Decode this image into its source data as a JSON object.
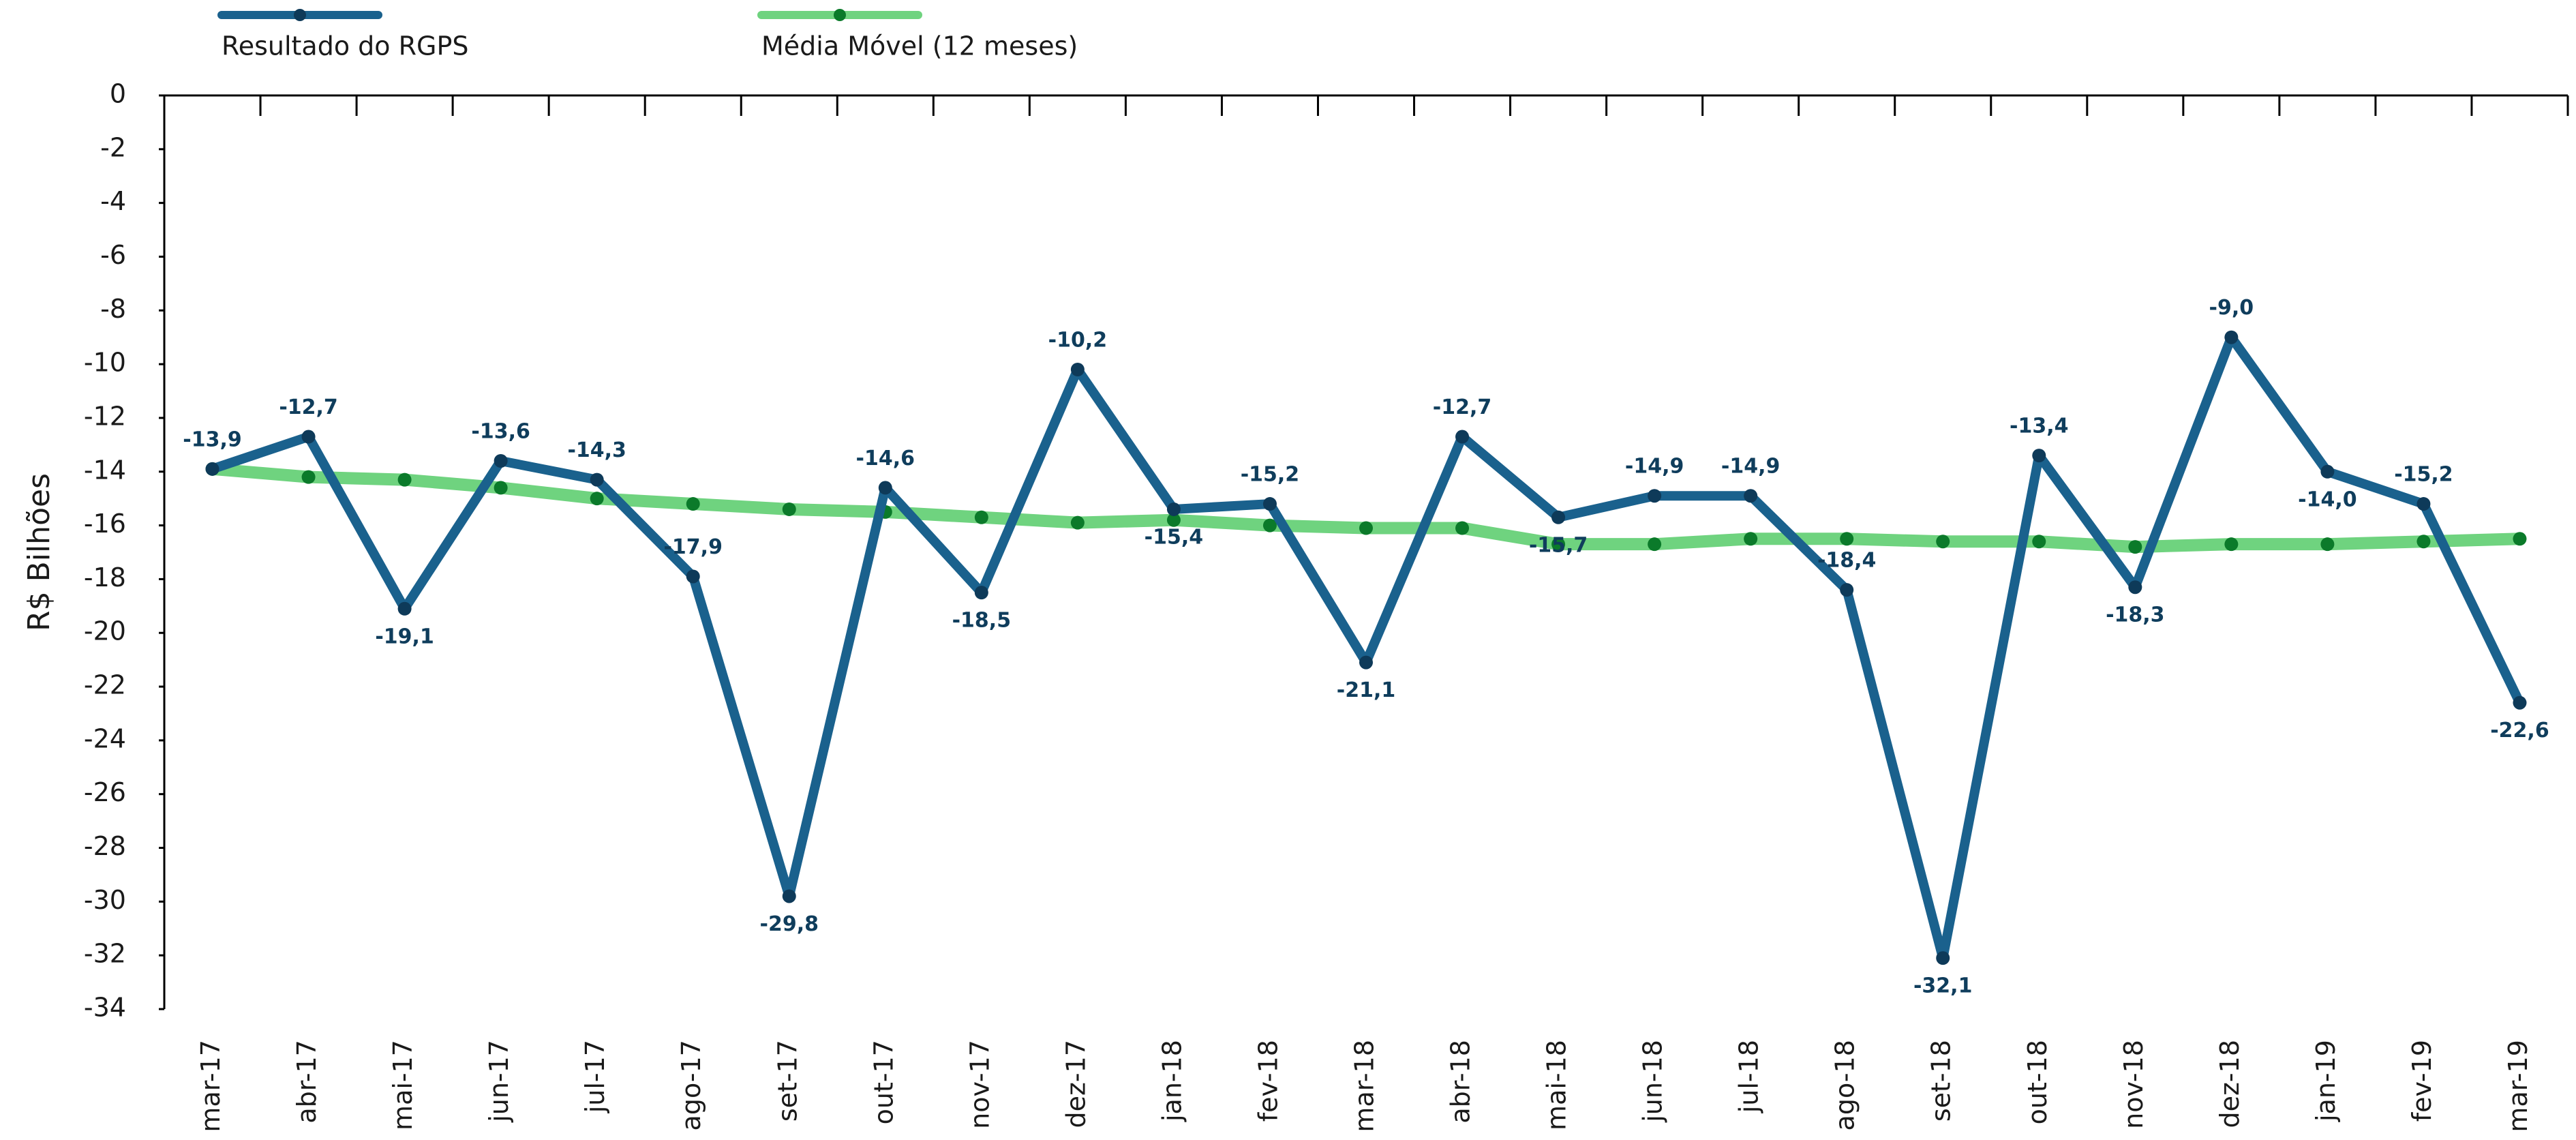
{
  "chart_data": {
    "type": "line",
    "y_label": "R$ Bilhões",
    "categories": [
      "mar-17",
      "abr-17",
      "mai-17",
      "jun-17",
      "jul-17",
      "ago-17",
      "set-17",
      "out-17",
      "nov-17",
      "dez-17",
      "jan-18",
      "fev-18",
      "mar-18",
      "abr-18",
      "mai-18",
      "jun-18",
      "jul-18",
      "ago-18",
      "set-18",
      "out-18",
      "nov-18",
      "dez-18",
      "jan-19",
      "fev-19",
      "mar-19"
    ],
    "series": [
      {
        "name": "Resultado do RGPS",
        "color": "#1a618d",
        "marker_color": "#0e3a59",
        "values": [
          -13.9,
          -12.7,
          -19.1,
          -13.6,
          -14.3,
          -17.9,
          -29.8,
          -14.6,
          -18.5,
          -10.2,
          -15.4,
          -15.2,
          -21.1,
          -12.7,
          -15.7,
          -14.9,
          -14.9,
          -18.4,
          -32.1,
          -13.4,
          -18.3,
          -9.0,
          -14.0,
          -15.2,
          -22.6
        ],
        "value_labels": [
          "-13,9",
          "-12,7",
          "-19,1",
          "-13,6",
          "-14,3",
          "-17,9",
          "-29,8",
          "-14,6",
          "-18,5",
          "-10,2",
          "-15,4",
          "-15,2",
          "-21,1",
          "-12,7",
          "-15,7",
          "-14,9",
          "-14,9",
          "-18,4",
          "-32,1",
          "-13,4",
          "-18,3",
          "-9,0",
          "-14,0",
          "-15,2",
          "-22,6"
        ]
      },
      {
        "name": "Média Móvel (12 meses)",
        "color": "#6fd37f",
        "marker_color": "#0b7a2a",
        "values": [
          -13.9,
          -14.2,
          -14.3,
          -14.6,
          -15.0,
          -15.2,
          -15.4,
          -15.5,
          -15.7,
          -15.9,
          -15.8,
          -16.0,
          -16.1,
          -16.1,
          -16.7,
          -16.7,
          -16.5,
          -16.5,
          -16.6,
          -16.6,
          -16.8,
          -16.7,
          -16.7,
          -16.6,
          -16.5
        ]
      }
    ],
    "ylim": [
      -34,
      0
    ],
    "yticks": [
      0,
      -2,
      -4,
      -6,
      -8,
      -10,
      -12,
      -14,
      -16,
      -18,
      -20,
      -22,
      -24,
      -26,
      -28,
      -30,
      -32,
      -34
    ]
  }
}
